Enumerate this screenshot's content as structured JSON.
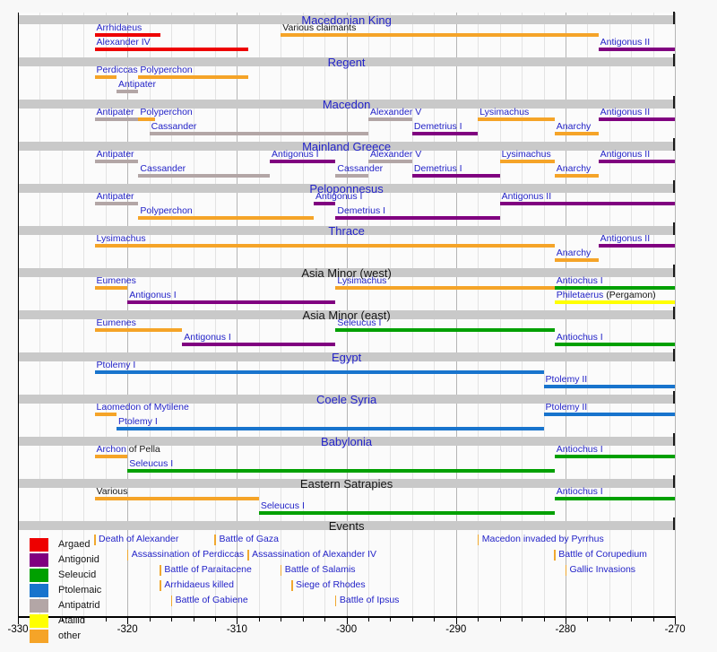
{
  "chart_data": {
    "type": "timeline",
    "title": "",
    "axis": {
      "min": -330,
      "max": -270,
      "major_step": 10,
      "minor_step": 2,
      "tick_labels": [
        "-330",
        "-320",
        "-310",
        "-300",
        "-290",
        "-280",
        "-270"
      ]
    },
    "colors": {
      "argead": "#ee0000",
      "antigonid": "#800080",
      "seleucid": "#00a000",
      "ptolemaic": "#1874cd",
      "antipatrid": "#b3a6a6",
      "attalid": "#ffff00",
      "other": "#f5a428",
      "band": "#c9c9c9",
      "link_text": "#2323c8",
      "plain_text": "#141414",
      "grid_minor": "#e3e3e3",
      "grid_major": "#b5b5b5",
      "event_tick": "#f0a830"
    },
    "legend": [
      {
        "label": "Argaed",
        "faction": "argead"
      },
      {
        "label": "Antigonid",
        "faction": "antigonid"
      },
      {
        "label": "Seleucid",
        "faction": "seleucid"
      },
      {
        "label": "Ptolemaic",
        "faction": "ptolemaic"
      },
      {
        "label": "Antipatrid",
        "faction": "antipatrid"
      },
      {
        "label": "Atallid",
        "faction": "attalid"
      },
      {
        "label": "other",
        "faction": "other"
      }
    ],
    "sections": [
      {
        "title": "Macedonian King",
        "link": true,
        "rows": [
          [
            {
              "label": "Arrhidaeus",
              "faction": "argead",
              "start": -323,
              "end": -317
            },
            {
              "label": "Various claimants",
              "faction": "other",
              "start": -306,
              "end": -277,
              "link": false
            }
          ],
          [
            {
              "label": "Alexander IV",
              "faction": "argead",
              "start": -323,
              "end": -309
            },
            {
              "label": "Antigonus II",
              "faction": "antigonid",
              "start": -277,
              "end": -270
            }
          ]
        ]
      },
      {
        "title": "Regent",
        "link": true,
        "rows": [
          [
            {
              "label": "Perdiccas",
              "faction": "other",
              "start": -323,
              "end": -321
            },
            {
              "label": "Polyperchon",
              "faction": "other",
              "start": -319,
              "end": -309
            }
          ],
          [
            {
              "label": "Antipater",
              "faction": "antipatrid",
              "start": -321,
              "end": -319
            }
          ]
        ]
      },
      {
        "title": "Macedon",
        "link": true,
        "rows": [
          [
            {
              "label": "Antipater",
              "faction": "antipatrid",
              "start": -323,
              "end": -319
            },
            {
              "label": "Polyperchon",
              "faction": "other",
              "start": -319,
              "end": -317.5
            },
            {
              "label": "Alexander V",
              "faction": "antipatrid",
              "start": -298,
              "end": -294
            },
            {
              "label": "Lysimachus",
              "faction": "other",
              "start": -288,
              "end": -281
            },
            {
              "label": "Antigonus II",
              "faction": "antigonid",
              "start": -277,
              "end": -270
            }
          ],
          [
            {
              "label": "Cassander",
              "faction": "antipatrid",
              "start": -318,
              "end": -298
            },
            {
              "label": "Demetrius I",
              "faction": "antigonid",
              "start": -294,
              "end": -288
            },
            {
              "label": "Anarchy",
              "faction": "other",
              "start": -281,
              "end": -277
            }
          ]
        ]
      },
      {
        "title": "Mainland Greece",
        "link": true,
        "rows": [
          [
            {
              "label": "Antipater",
              "faction": "antipatrid",
              "start": -323,
              "end": -319
            },
            {
              "label": "Antigonus I",
              "faction": "antigonid",
              "start": -307,
              "end": -301
            },
            {
              "label": "Alexander V",
              "faction": "antipatrid",
              "start": -298,
              "end": -294
            },
            {
              "label": "Lysimachus",
              "faction": "other",
              "start": -286,
              "end": -281
            },
            {
              "label": "Antigonus II",
              "faction": "antigonid",
              "start": -277,
              "end": -270
            }
          ],
          [
            {
              "label": "Cassander",
              "faction": "antipatrid",
              "start": -319,
              "end": -307
            },
            {
              "label": "Cassander",
              "faction": "antipatrid",
              "start": -301,
              "end": -298
            },
            {
              "label": "Demetrius I",
              "faction": "antigonid",
              "start": -294,
              "end": -286
            },
            {
              "label": "Anarchy",
              "faction": "other",
              "start": -281,
              "end": -277
            }
          ]
        ]
      },
      {
        "title": "Peloponnesus",
        "link": true,
        "rows": [
          [
            {
              "label": "Antipater",
              "faction": "antipatrid",
              "start": -323,
              "end": -319
            },
            {
              "label": "Antigonus I",
              "faction": "antigonid",
              "start": -303,
              "end": -301
            },
            {
              "label": "Antigonus II",
              "faction": "antigonid",
              "start": -286,
              "end": -270
            }
          ],
          [
            {
              "label": "Polyperchon",
              "faction": "other",
              "start": -319,
              "end": -303
            },
            {
              "label": "Demetrius I",
              "faction": "antigonid",
              "start": -301,
              "end": -286
            }
          ]
        ]
      },
      {
        "title": "Thrace",
        "link": true,
        "rows": [
          [
            {
              "label": "Lysimachus",
              "faction": "other",
              "start": -323,
              "end": -281
            },
            {
              "label": "Antigonus II",
              "faction": "antigonid",
              "start": -277,
              "end": -270
            }
          ],
          [
            {
              "label": "Anarchy",
              "faction": "other",
              "start": -281,
              "end": -277
            }
          ]
        ]
      },
      {
        "title": "Asia Minor (west)",
        "link": false,
        "rows": [
          [
            {
              "label": "Eumenes",
              "faction": "other",
              "start": -323,
              "end": -320
            },
            {
              "label": "Lysimachus",
              "faction": "other",
              "start": -301,
              "end": -281
            },
            {
              "label": "Antiochus I",
              "faction": "seleucid",
              "start": -281,
              "end": -270
            }
          ],
          [
            {
              "label": "Antigonus I",
              "faction": "antigonid",
              "start": -320,
              "end": -301
            },
            {
              "label": "Philetaerus",
              "suffix": " (Pergamon)",
              "faction": "attalid",
              "start": -281,
              "end": -270
            }
          ]
        ]
      },
      {
        "title": "Asia Minor (east)",
        "link": false,
        "rows": [
          [
            {
              "label": "Eumenes",
              "faction": "other",
              "start": -323,
              "end": -315
            },
            {
              "label": "Seleucus I",
              "faction": "seleucid",
              "start": -301,
              "end": -281
            }
          ],
          [
            {
              "label": "Antigonus I",
              "faction": "antigonid",
              "start": -315,
              "end": -301
            },
            {
              "label": "Antiochus I",
              "faction": "seleucid",
              "start": -281,
              "end": -270
            }
          ]
        ]
      },
      {
        "title": "Egypt",
        "link": true,
        "rows": [
          [
            {
              "label": "Ptolemy I",
              "faction": "ptolemaic",
              "start": -323,
              "end": -282
            }
          ],
          [
            {
              "label": "Ptolemy II",
              "faction": "ptolemaic",
              "start": -282,
              "end": -270
            }
          ]
        ]
      },
      {
        "title": "Coele Syria",
        "link": true,
        "rows": [
          [
            {
              "label": "Laomedon of Mytilene",
              "faction": "other",
              "start": -323,
              "end": -321
            },
            {
              "label": "Ptolemy II",
              "faction": "ptolemaic",
              "start": -282,
              "end": -270
            }
          ],
          [
            {
              "label": "Ptolemy I",
              "faction": "ptolemaic",
              "start": -321,
              "end": -282
            }
          ]
        ]
      },
      {
        "title": "Babylonia",
        "link": true,
        "rows": [
          [
            {
              "label": "Archon",
              "suffix": " of Pella",
              "faction": "other",
              "start": -323,
              "end": -320
            },
            {
              "label": "Antiochus I",
              "faction": "seleucid",
              "start": -281,
              "end": -270
            }
          ],
          [
            {
              "label": "Seleucus I",
              "faction": "seleucid",
              "start": -320,
              "end": -281
            }
          ]
        ]
      },
      {
        "title": "Eastern Satrapies",
        "link": false,
        "rows": [
          [
            {
              "label": "Various",
              "faction": "other",
              "start": -323,
              "end": -308,
              "link": false
            },
            {
              "label": "Antiochus I",
              "faction": "seleucid",
              "start": -281,
              "end": -270
            }
          ],
          [
            {
              "label": "Seleucus I",
              "faction": "seleucid",
              "start": -308,
              "end": -281
            }
          ]
        ]
      }
    ],
    "events_section": {
      "title": "Events",
      "link": false,
      "rows": [
        [
          {
            "label": "Death of Alexander",
            "year": -323
          },
          {
            "label": "Battle of Gaza",
            "year": -312
          },
          {
            "label": "Macedon invaded by Pyrrhus",
            "year": -288
          }
        ],
        [
          {
            "label": "Assassination of Perdiccas",
            "year": -320
          },
          {
            "label": "Assassination of Alexander IV",
            "year": -309
          },
          {
            "label": "Battle of Corupedium",
            "year": -281
          }
        ],
        [
          {
            "label": "Battle of Paraitacene",
            "year": -317
          },
          {
            "label": "Battle of Salamis",
            "year": -306
          },
          {
            "label": "Gallic Invasions",
            "year": -280
          }
        ],
        [
          {
            "label": "Arrhidaeus killed",
            "year": -317
          },
          {
            "label": "Siege of Rhodes",
            "year": -305
          }
        ],
        [
          {
            "label": "Battle of Gabiene",
            "year": -316
          },
          {
            "label": "Battle of Ipsus",
            "year": -301
          }
        ]
      ]
    }
  }
}
